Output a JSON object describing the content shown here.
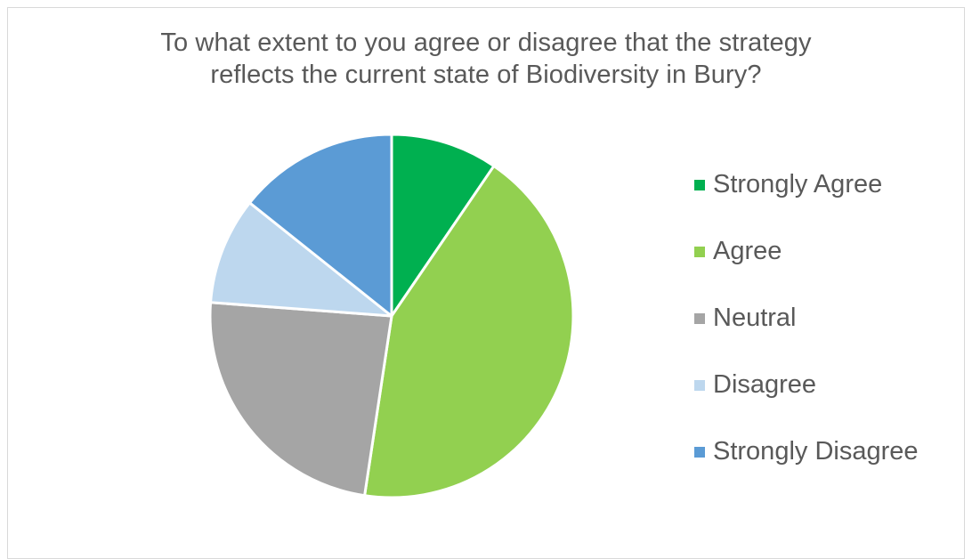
{
  "chart_data": {
    "type": "pie",
    "title": "To what extent to you agree or disagree that the strategy reflects the current state of Biodiversity in Bury?",
    "title_lines": [
      "To what extent to you agree or disagree that the strategy",
      "reflects the current state of Biodiversity in Bury?"
    ],
    "categories": [
      "Strongly Agree",
      "Agree",
      "Neutral",
      "Disagree",
      "Strongly Disagree"
    ],
    "values": [
      2,
      9,
      5,
      2,
      3
    ],
    "colors": [
      "#00b050",
      "#92d050",
      "#a5a5a5",
      "#bdd7ee",
      "#5b9bd5"
    ],
    "legend_position": "right",
    "start_angle": "top, clockwise"
  }
}
